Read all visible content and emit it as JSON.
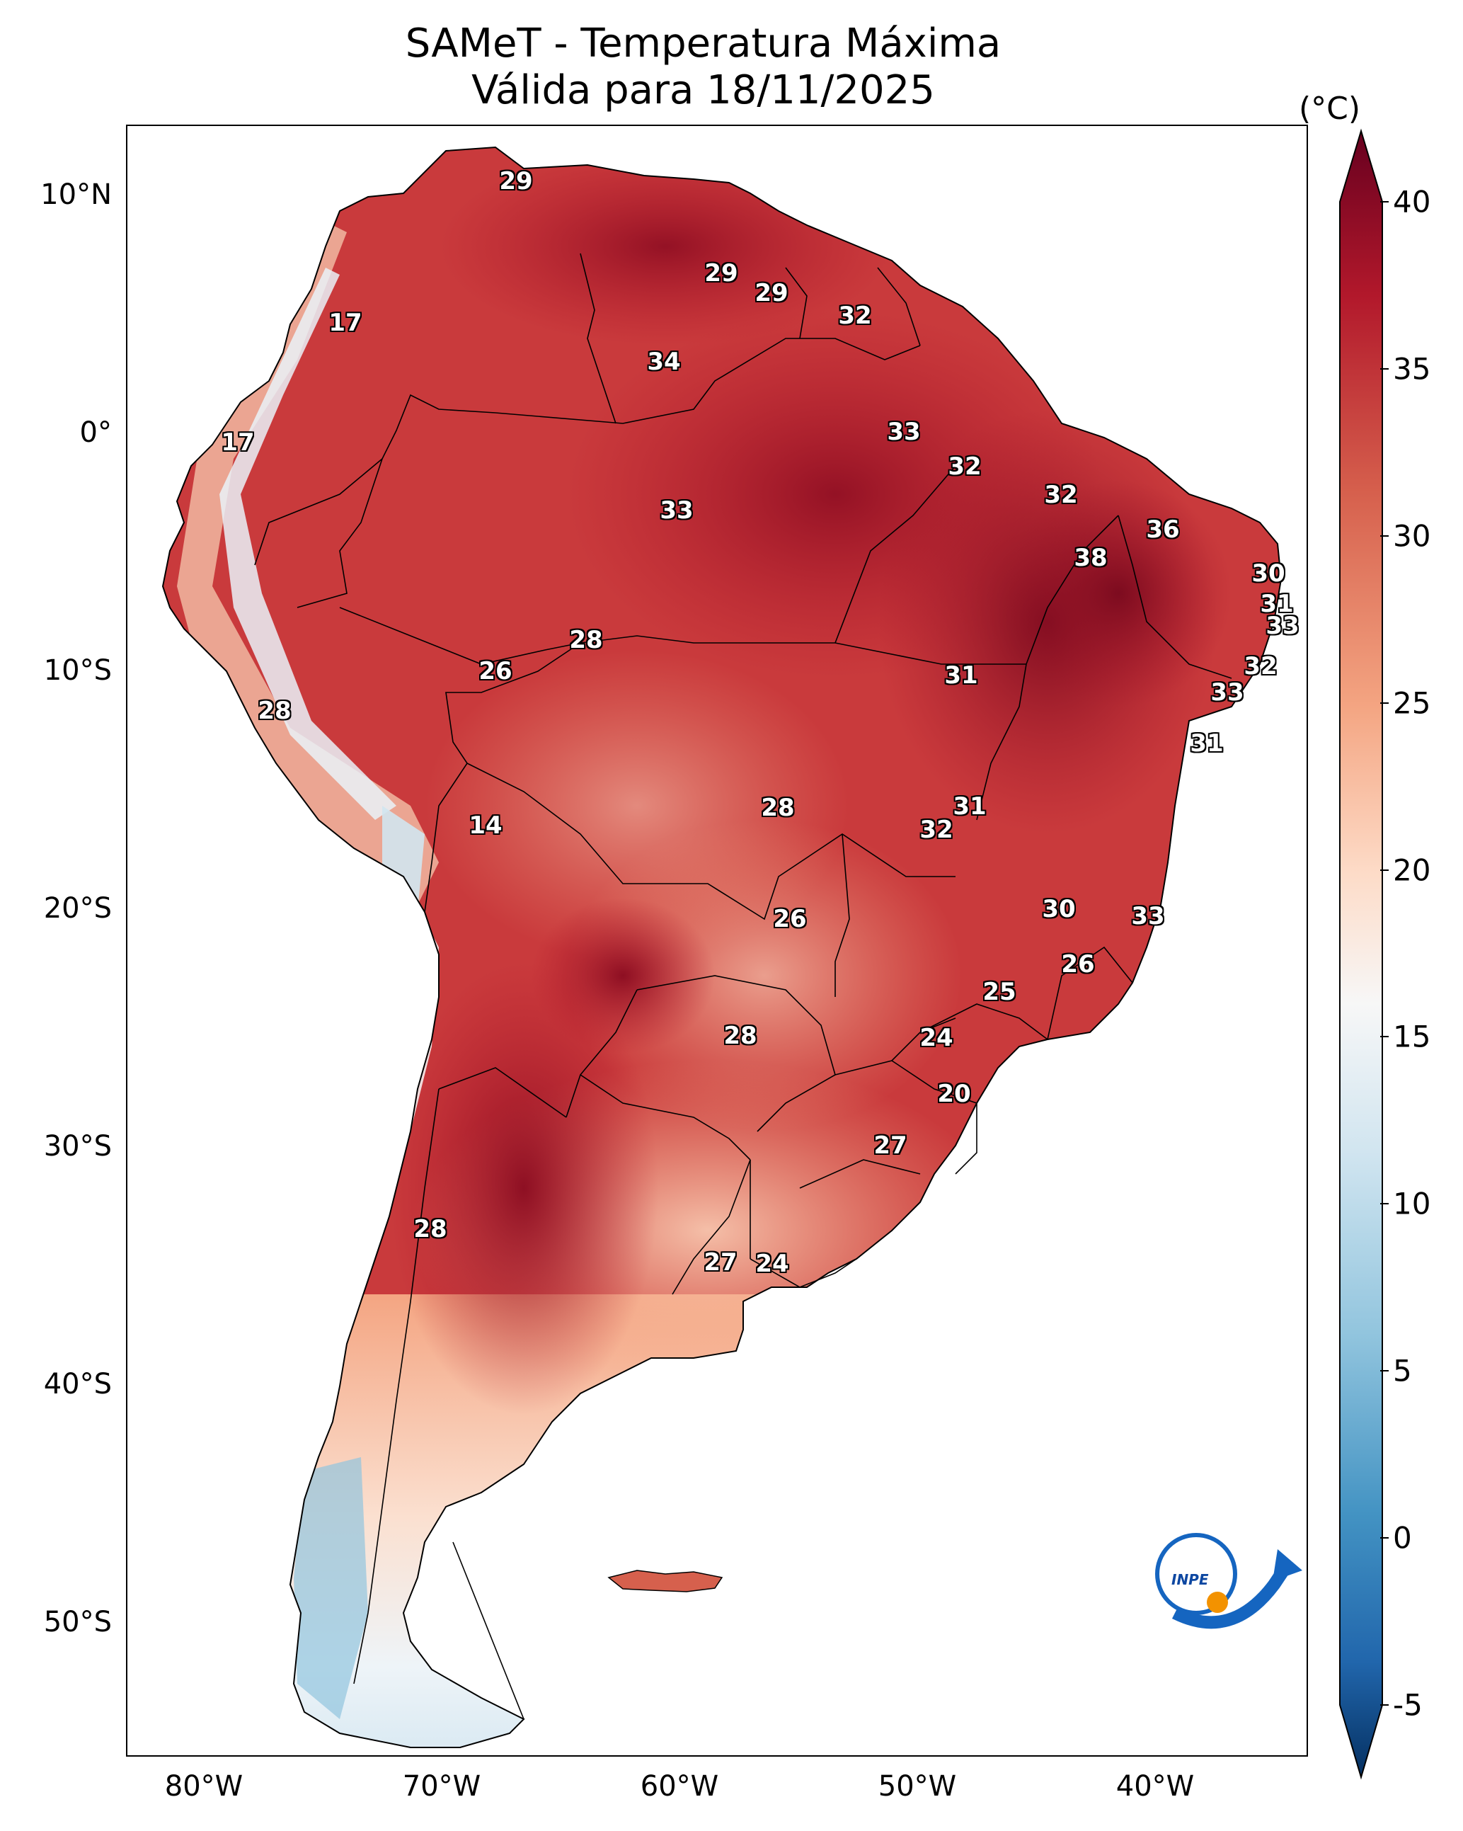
{
  "title": {
    "line1": "SAMeT - Temperatura Máxima",
    "line2": "Válida para 18/11/2025"
  },
  "colorbar": {
    "unit": "(°C)",
    "ticks": [
      "40",
      "35",
      "30",
      "25",
      "20",
      "15",
      "10",
      "5",
      "0",
      "-5"
    ],
    "min": -5,
    "max": 40,
    "colors": [
      "#053061",
      "#2166ac",
      "#4393c3",
      "#92c5de",
      "#d1e5f0",
      "#f7f7f7",
      "#fddbc7",
      "#f4a582",
      "#d6604d",
      "#b2182b",
      "#67001f"
    ]
  },
  "axes": {
    "lat_labels": [
      "10°N",
      "0°",
      "10°S",
      "20°S",
      "30°S",
      "40°S",
      "50°S"
    ],
    "lon_labels": [
      "80°W",
      "70°W",
      "60°W",
      "50°W",
      "40°W"
    ]
  },
  "station_values": [
    {
      "label": "29"
    },
    {
      "label": "17"
    },
    {
      "label": "29"
    },
    {
      "label": "29"
    },
    {
      "label": "32"
    },
    {
      "label": "34"
    },
    {
      "label": "17"
    },
    {
      "label": "33"
    },
    {
      "label": "32"
    },
    {
      "label": "33"
    },
    {
      "label": "32"
    },
    {
      "label": "36"
    },
    {
      "label": "38"
    },
    {
      "label": "30"
    },
    {
      "label": "31"
    },
    {
      "label": "33"
    },
    {
      "label": "28"
    },
    {
      "label": "26"
    },
    {
      "label": "32"
    },
    {
      "label": "31"
    },
    {
      "label": "33"
    },
    {
      "label": "28"
    },
    {
      "label": "31"
    },
    {
      "label": "31"
    },
    {
      "label": "14"
    },
    {
      "label": "28"
    },
    {
      "label": "32"
    },
    {
      "label": "30"
    },
    {
      "label": "33"
    },
    {
      "label": "26"
    },
    {
      "label": "26"
    },
    {
      "label": "25"
    },
    {
      "label": "28"
    },
    {
      "label": "24"
    },
    {
      "label": "20"
    },
    {
      "label": "27"
    },
    {
      "label": "28"
    },
    {
      "label": "27"
    },
    {
      "label": "24"
    }
  ],
  "logo": {
    "text": "INPE"
  }
}
